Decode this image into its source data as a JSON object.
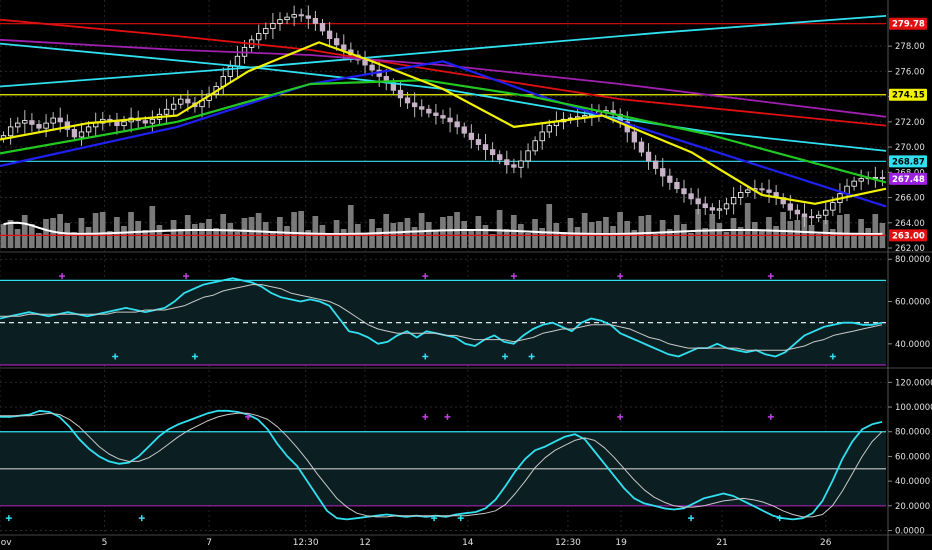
{
  "chart_data": [
    {
      "type": "candlestick",
      "panel": "price",
      "ylim": [
        262,
        281.5
      ],
      "y_ticks": [
        "262.00",
        "264.00",
        "266.00",
        "268.00",
        "270.00",
        "272.00",
        "274.00",
        "276.00",
        "278.00"
      ],
      "x_ticks": [
        "Nov",
        "5",
        "7",
        "12:30",
        "12",
        "14",
        "12:30",
        "19",
        "21",
        "26"
      ],
      "price_tags": [
        {
          "label": "279.78",
          "value": 279.78,
          "color": "#e01010",
          "text_color": "#ffffff"
        },
        {
          "label": "274.15",
          "value": 274.15,
          "color": "#f0f000",
          "text_color": "#000000"
        },
        {
          "label": "268.87",
          "value": 268.87,
          "color": "#30e0f0",
          "text_color": "#000000"
        },
        {
          "label": "267.48",
          "value": 267.48,
          "color": "#9b20e0",
          "text_color": "#ffffff"
        },
        {
          "label": "263.00",
          "value": 263.0,
          "color": "#e01010",
          "text_color": "#ffffff"
        }
      ],
      "horizontal_lines": [
        {
          "value": 279.78,
          "color": "#e01010"
        },
        {
          "value": 274.15,
          "color": "#f0f000"
        },
        {
          "value": 268.87,
          "color": "#30e0f0"
        },
        {
          "value": 263.0,
          "color": "#e01010"
        }
      ],
      "close": [
        270.9,
        271.6,
        271.9,
        272.1,
        271.8,
        271.5,
        271.9,
        272.3,
        272.0,
        271.4,
        270.8,
        271.2,
        271.6,
        271.9,
        272.2,
        272.0,
        271.7,
        272.0,
        272.3,
        272.1,
        271.9,
        272.2,
        272.6,
        273.0,
        273.4,
        273.8,
        273.5,
        273.2,
        273.7,
        274.2,
        274.8,
        275.6,
        276.4,
        277.2,
        277.9,
        278.5,
        279.0,
        279.4,
        279.8,
        280.1,
        280.3,
        280.5,
        280.4,
        280.2,
        279.8,
        279.2,
        278.6,
        278.1,
        277.7,
        277.3,
        276.9,
        276.5,
        276.1,
        275.6,
        275.1,
        274.5,
        273.9,
        273.5,
        273.2,
        273.0,
        272.7,
        272.5,
        272.3,
        272.0,
        271.6,
        271.1,
        270.6,
        270.2,
        269.8,
        269.4,
        269.0,
        268.6,
        268.4,
        268.9,
        269.7,
        270.5,
        271.2,
        271.7,
        272.0,
        272.2,
        272.3,
        272.4,
        272.5,
        272.6,
        272.8,
        272.9,
        272.6,
        272.0,
        271.2,
        270.4,
        269.6,
        268.9,
        268.3,
        267.7,
        267.2,
        266.7,
        266.3,
        265.9,
        265.5,
        265.2,
        265.0,
        265.1,
        265.5,
        266.0,
        266.4,
        266.6,
        266.7,
        266.6,
        266.4,
        266.0,
        265.5,
        265.0,
        264.7,
        264.5,
        264.4,
        264.6,
        265.0,
        265.6,
        266.3,
        266.9,
        267.3,
        267.5,
        267.6,
        267.6,
        267.5
      ],
      "series": [
        {
          "name": "",
          "color": "#30e0f0",
          "values": [
            [
              0,
              274.8
            ],
            [
              0.15,
              275.6
            ],
            [
              0.3,
              276.4
            ],
            [
              0.45,
              277.3
            ],
            [
              0.6,
              278.2
            ],
            [
              0.75,
              279.1
            ],
            [
              1,
              280.4
            ]
          ]
        },
        {
          "name": "",
          "color": "#30e0f0",
          "values": [
            [
              0,
              278.2
            ],
            [
              0.3,
              276.2
            ],
            [
              0.5,
              274.6
            ],
            [
              0.65,
              272.8
            ],
            [
              0.8,
              271.2
            ],
            [
              1,
              269.7
            ]
          ]
        },
        {
          "name": "",
          "color": "#e01010",
          "values": [
            [
              0,
              280.1
            ],
            [
              0.2,
              278.8
            ],
            [
              0.35,
              277.7
            ],
            [
              0.5,
              276.0
            ],
            [
              0.7,
              273.8
            ],
            [
              1,
              271.7
            ]
          ]
        },
        {
          "name": "",
          "color": "#a020b0",
          "values": [
            [
              0,
              278.5
            ],
            [
              0.2,
              277.7
            ],
            [
              0.35,
              277.3
            ],
            [
              0.5,
              276.5
            ],
            [
              0.7,
              275.0
            ],
            [
              1,
              272.4
            ]
          ]
        },
        {
          "name": "",
          "color": "#2020f0",
          "values": [
            [
              0,
              268.5
            ],
            [
              0.2,
              271.6
            ],
            [
              0.35,
              275.0
            ],
            [
              0.5,
              276.8
            ],
            [
              0.62,
              273.8
            ],
            [
              0.8,
              269.8
            ],
            [
              1,
              265.3
            ]
          ]
        },
        {
          "name": "",
          "color": "#22c822",
          "values": [
            [
              0,
              269.5
            ],
            [
              0.2,
              272.0
            ],
            [
              0.35,
              275.0
            ],
            [
              0.48,
              275.3
            ],
            [
              0.6,
              274.0
            ],
            [
              0.8,
              271.0
            ],
            [
              1,
              267.2
            ]
          ]
        },
        {
          "name": "",
          "color": "#f0f000",
          "values": [
            [
              0,
              270.6
            ],
            [
              0.1,
              271.9
            ],
            [
              0.2,
              272.5
            ],
            [
              0.28,
              276.0
            ],
            [
              0.36,
              278.3
            ],
            [
              0.42,
              276.8
            ],
            [
              0.5,
              274.6
            ],
            [
              0.58,
              271.6
            ],
            [
              0.68,
              272.5
            ],
            [
              0.78,
              269.6
            ],
            [
              0.86,
              266.2
            ],
            [
              0.92,
              265.5
            ],
            [
              1,
              266.7
            ]
          ]
        }
      ],
      "volume_avg_line_color": "#ffffff"
    },
    {
      "type": "line",
      "panel": "rsi",
      "ylim": [
        30,
        82
      ],
      "y_ticks": [
        "40.0000",
        "60.0000",
        "80.0000"
      ],
      "band_lines": [
        {
          "value": 70,
          "color": "#30e0f0"
        },
        {
          "value": 50,
          "color": "#ffffff",
          "dashed": true
        },
        {
          "value": 30,
          "color": "#a020b0"
        }
      ],
      "series": [
        {
          "name": "",
          "color": "#30e0f0",
          "values": [
            52,
            53,
            54,
            55,
            54,
            53,
            54,
            55,
            54,
            53,
            54,
            55,
            56,
            57,
            56,
            55,
            56,
            57,
            60,
            64,
            66,
            68,
            69,
            70,
            71,
            70,
            69,
            67,
            64,
            62,
            61,
            60,
            61,
            60,
            58,
            52,
            46,
            45,
            43,
            40,
            41,
            44,
            46,
            43,
            46,
            45,
            44,
            43,
            40,
            39,
            42,
            44,
            41,
            40,
            44,
            47,
            49,
            50,
            48,
            46,
            50,
            52,
            51,
            49,
            45,
            43,
            41,
            39,
            37,
            35,
            34,
            36,
            38,
            38,
            40,
            38,
            37,
            36,
            37,
            35,
            34,
            36,
            40,
            44,
            46,
            48,
            49,
            50,
            50,
            49,
            49,
            50
          ]
        },
        {
          "name": "",
          "color": "#c8c8c8",
          "values": [
            53,
            53,
            53,
            54,
            54,
            54,
            54,
            54,
            54,
            54,
            54,
            54,
            55,
            55,
            55,
            56,
            56,
            56,
            57,
            58,
            60,
            62,
            63,
            65,
            66,
            67,
            68,
            68,
            67,
            66,
            64,
            63,
            62,
            61,
            60,
            58,
            55,
            52,
            49,
            47,
            46,
            45,
            45,
            45,
            45,
            45,
            44,
            44,
            43,
            42,
            42,
            42,
            42,
            41,
            42,
            43,
            45,
            46,
            47,
            47,
            48,
            49,
            49,
            49,
            48,
            47,
            45,
            43,
            42,
            40,
            39,
            38,
            38,
            38,
            38,
            38,
            38,
            37,
            37,
            37,
            37,
            37,
            38,
            39,
            41,
            42,
            44,
            45,
            46,
            47,
            48,
            49
          ]
        }
      ],
      "markers": [
        {
          "x": 0.07,
          "v": 72,
          "color": "#c040e0"
        },
        {
          "x": 0.21,
          "v": 72,
          "color": "#c040e0"
        },
        {
          "x": 0.48,
          "v": 72,
          "color": "#c040e0"
        },
        {
          "x": 0.58,
          "v": 72,
          "color": "#c040e0"
        },
        {
          "x": 0.7,
          "v": 72,
          "color": "#c040e0"
        },
        {
          "x": 0.87,
          "v": 72,
          "color": "#c040e0"
        },
        {
          "x": 0.13,
          "v": 34,
          "color": "#30e0f0"
        },
        {
          "x": 0.22,
          "v": 34,
          "color": "#30e0f0"
        },
        {
          "x": 0.48,
          "v": 34,
          "color": "#30e0f0"
        },
        {
          "x": 0.57,
          "v": 34,
          "color": "#30e0f0"
        },
        {
          "x": 0.6,
          "v": 34,
          "color": "#30e0f0"
        },
        {
          "x": 0.94,
          "v": 34,
          "color": "#30e0f0"
        }
      ]
    },
    {
      "type": "line",
      "panel": "stochastic",
      "ylim": [
        -2,
        130
      ],
      "y_ticks": [
        "0.0000",
        "20.0000",
        "40.0000",
        "60.0000",
        "80.0000",
        "100.0000",
        "120.0000"
      ],
      "band_lines": [
        {
          "value": 80,
          "color": "#30e0f0"
        },
        {
          "value": 50,
          "color": "#c8c8c8"
        },
        {
          "value": 20,
          "color": "#a020b0"
        }
      ],
      "series": [
        {
          "name": "",
          "color": "#30e0f0",
          "values": [
            92,
            92,
            93,
            94,
            97,
            96,
            92,
            84,
            74,
            66,
            60,
            56,
            54,
            55,
            60,
            68,
            76,
            82,
            86,
            89,
            92,
            95,
            97,
            97,
            96,
            94,
            90,
            82,
            70,
            60,
            52,
            40,
            28,
            16,
            10,
            9,
            10,
            11,
            12,
            13,
            12,
            11,
            12,
            11,
            12,
            11,
            13,
            14,
            15,
            18,
            25,
            36,
            48,
            58,
            65,
            68,
            72,
            76,
            78,
            74,
            64,
            54,
            44,
            34,
            26,
            22,
            20,
            18,
            17,
            18,
            22,
            26,
            28,
            30,
            28,
            24,
            20,
            16,
            12,
            10,
            9,
            10,
            14,
            24,
            40,
            58,
            72,
            82,
            86,
            88
          ]
        },
        {
          "name": "",
          "color": "#c8c8c8",
          "values": [
            93,
            93,
            93,
            93,
            94,
            95,
            94,
            90,
            84,
            76,
            68,
            62,
            58,
            56,
            56,
            59,
            64,
            70,
            76,
            81,
            85,
            89,
            92,
            94,
            95,
            95,
            93,
            90,
            84,
            76,
            67,
            57,
            46,
            36,
            26,
            19,
            14,
            12,
            11,
            11,
            12,
            12,
            12,
            12,
            12,
            12,
            12,
            12,
            13,
            14,
            16,
            21,
            30,
            40,
            51,
            59,
            65,
            69,
            73,
            75,
            73,
            67,
            59,
            50,
            41,
            33,
            27,
            23,
            20,
            19,
            19,
            20,
            22,
            24,
            25,
            26,
            25,
            23,
            20,
            16,
            13,
            11,
            11,
            13,
            20,
            32,
            46,
            60,
            72,
            80
          ]
        }
      ],
      "markers": [
        {
          "x": 0.28,
          "v": 92,
          "color": "#c040e0"
        },
        {
          "x": 0.48,
          "v": 92,
          "color": "#c040e0"
        },
        {
          "x": 0.505,
          "v": 92,
          "color": "#c040e0"
        },
        {
          "x": 0.7,
          "v": 92,
          "color": "#c040e0"
        },
        {
          "x": 0.87,
          "v": 92,
          "color": "#c040e0"
        },
        {
          "x": 0.01,
          "v": 10,
          "color": "#30e0f0"
        },
        {
          "x": 0.16,
          "v": 10,
          "color": "#30e0f0"
        },
        {
          "x": 0.49,
          "v": 10,
          "color": "#30e0f0"
        },
        {
          "x": 0.52,
          "v": 10,
          "color": "#30e0f0"
        },
        {
          "x": 0.78,
          "v": 10,
          "color": "#30e0f0"
        },
        {
          "x": 0.88,
          "v": 10,
          "color": "#30e0f0"
        }
      ]
    }
  ]
}
